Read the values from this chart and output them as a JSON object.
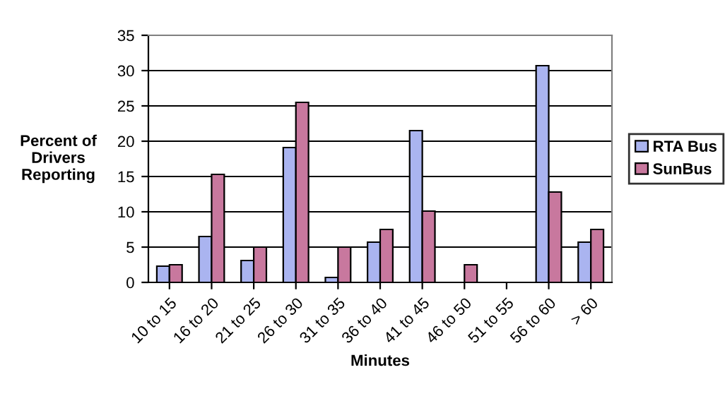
{
  "chart_data": {
    "type": "bar",
    "xlabel": "Minutes",
    "ylabel": "Percent of\nDrivers\nReporting",
    "categories": [
      "10 to 15",
      "16 to 20",
      "21 to 25",
      "26 to 30",
      "31 to 35",
      "36 to 40",
      "41 to 45",
      "46 to 50",
      "51 to 55",
      "56 to 60",
      "> 60"
    ],
    "series": [
      {
        "name": "RTA Bus",
        "color": "#aab4f0",
        "values": [
          2.3,
          6.5,
          3.1,
          19.1,
          0.7,
          5.7,
          21.5,
          0,
          0,
          30.7,
          5.7
        ]
      },
      {
        "name": "SunBus",
        "color": "#c8789e",
        "values": [
          2.5,
          15.3,
          5.0,
          25.5,
          5.0,
          7.5,
          10.1,
          2.5,
          0,
          12.8,
          7.5
        ]
      }
    ],
    "ylim": [
      0,
      35
    ],
    "yticks": [
      0,
      5,
      10,
      15,
      20,
      25,
      30,
      35
    ],
    "grid": "y",
    "legend": "right"
  }
}
